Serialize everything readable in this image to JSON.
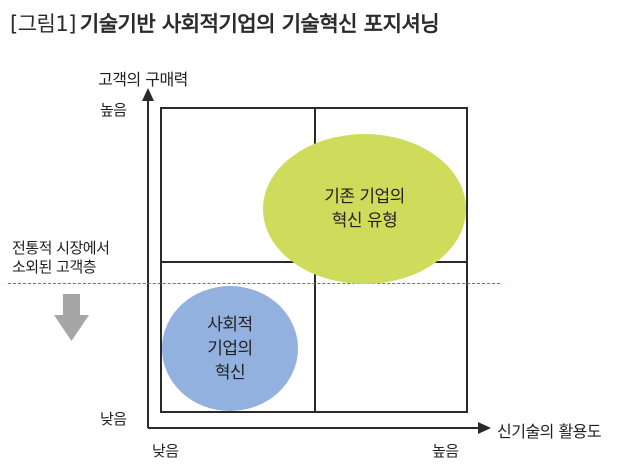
{
  "title": {
    "figure_label": "[그림1]",
    "text": "기술기반 사회적기업의 기술혁신 포지셔닝"
  },
  "axes": {
    "y_label": "고객의 구매력",
    "y_high": "높음",
    "y_low": "낮음",
    "x_label": "신기술의 활용도",
    "x_low": "낮음",
    "x_high": "높음"
  },
  "regions": {
    "existing_innovation": [
      "기존 기업의",
      "혁신 유형"
    ],
    "social_innovation": [
      "사회적",
      "기업의",
      "혁신"
    ]
  },
  "annotation": [
    "전통적 시장에서",
    "소외된 고객층"
  ],
  "colors": {
    "existing_fill": "#cfdb5a",
    "social_fill": "#93b1de",
    "dashed_line": "#d23aa6",
    "arrow_gray": "#a6a6a6"
  }
}
